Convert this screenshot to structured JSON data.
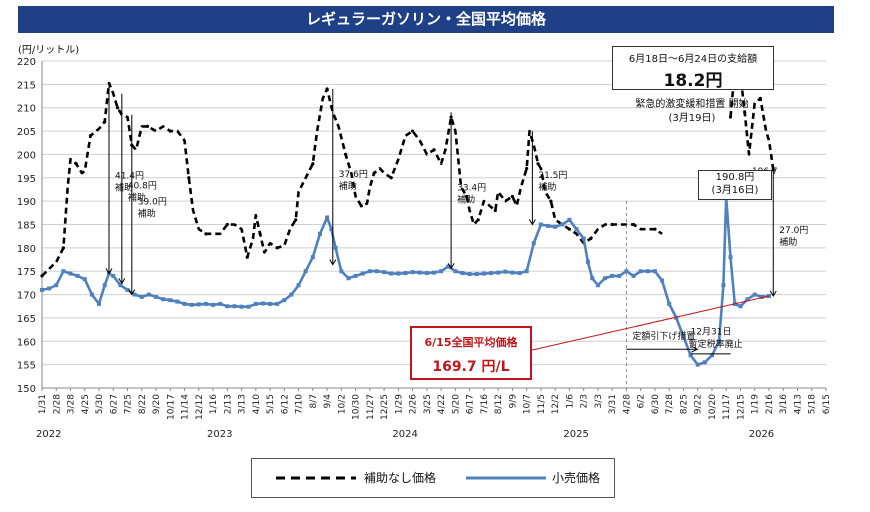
{
  "title": "レギュラーガソリン・全国平均価格",
  "chart_data": {
    "type": "line",
    "ylabel": "(円/リットル)",
    "ylim": [
      150,
      220
    ],
    "yticks": [
      150,
      155,
      160,
      165,
      170,
      175,
      180,
      185,
      190,
      195,
      200,
      205,
      210,
      215,
      220
    ],
    "x_labels": [
      "1/31",
      "2/28",
      "3/28",
      "4/25",
      "5/30",
      "6/27",
      "7/25",
      "8/22",
      "9/20",
      "10/17",
      "11/14",
      "12/12",
      "1/16",
      "2/13",
      "3/13",
      "4/10",
      "5/15",
      "6/12",
      "7/10",
      "8/7",
      "9/4",
      "10/2",
      "10/30",
      "11/27",
      "12/25",
      "1/29",
      "2/26",
      "3/25",
      "4/22",
      "5/20",
      "6/17",
      "7/16",
      "8/12",
      "9/9",
      "10/7",
      "11/5",
      "12/2",
      "1/6",
      "2/3",
      "3/3",
      "3/31",
      "4/28",
      "6/2",
      "6/30",
      "7/28",
      "8/25",
      "9/22",
      "10/20",
      "11/17",
      "12/15",
      "1/19",
      "2/16",
      "3/16",
      "4/13",
      "5/18",
      "6/15"
    ],
    "years": [
      {
        "label": "2022",
        "index": 0
      },
      {
        "label": "2023",
        "index": 12
      },
      {
        "label": "2024",
        "index": 25
      },
      {
        "label": "2025",
        "index": 37
      },
      {
        "label": "2026",
        "index": 50
      }
    ],
    "series": [
      {
        "name": "補助なし価格",
        "style": "dashed",
        "color": "#000000",
        "points": [
          [
            0,
            174
          ],
          [
            0.5,
            175.5
          ],
          [
            1,
            177
          ],
          [
            1.5,
            180
          ],
          [
            1.8,
            193
          ],
          [
            2,
            199
          ],
          [
            2.4,
            198
          ],
          [
            2.8,
            196
          ],
          [
            3,
            196.5
          ],
          [
            3.4,
            204
          ],
          [
            3.8,
            205
          ],
          [
            4,
            205.5
          ],
          [
            4.4,
            207
          ],
          [
            4.7,
            215.3
          ],
          [
            5,
            213
          ],
          [
            5.3,
            210
          ],
          [
            5.6,
            208.5
          ],
          [
            6,
            208
          ],
          [
            6.3,
            202
          ],
          [
            6.6,
            201
          ],
          [
            7,
            206
          ],
          [
            7.4,
            206
          ],
          [
            8,
            205
          ],
          [
            8.5,
            206
          ],
          [
            9,
            205
          ],
          [
            9.5,
            205
          ],
          [
            10,
            203
          ],
          [
            10.3,
            195
          ],
          [
            10.6,
            188
          ],
          [
            11,
            184
          ],
          [
            11.5,
            183
          ],
          [
            12,
            183
          ],
          [
            12.5,
            183
          ],
          [
            13,
            185
          ],
          [
            13.5,
            185
          ],
          [
            14,
            184
          ],
          [
            14.4,
            178
          ],
          [
            14.8,
            182
          ],
          [
            15,
            187
          ],
          [
            15.3,
            183
          ],
          [
            15.6,
            179
          ],
          [
            16,
            181
          ],
          [
            16.5,
            180
          ],
          [
            17,
            180.5
          ],
          [
            17.4,
            184
          ],
          [
            17.8,
            186
          ],
          [
            18,
            192
          ],
          [
            18.5,
            195
          ],
          [
            19,
            198
          ],
          [
            19.3,
            205
          ],
          [
            19.7,
            212
          ],
          [
            20,
            214
          ],
          [
            20.4,
            209
          ],
          [
            20.8,
            206
          ],
          [
            21.3,
            200
          ],
          [
            21.7,
            196
          ],
          [
            22,
            191
          ],
          [
            22.4,
            189
          ],
          [
            22.8,
            189.5
          ],
          [
            23,
            193
          ],
          [
            23.3,
            196
          ],
          [
            23.7,
            197
          ],
          [
            24,
            196
          ],
          [
            24.5,
            195
          ],
          [
            25,
            199
          ],
          [
            25.5,
            204
          ],
          [
            26,
            205
          ],
          [
            26.5,
            203
          ],
          [
            27,
            200
          ],
          [
            27.5,
            201
          ],
          [
            28,
            198
          ],
          [
            28.3,
            201
          ],
          [
            28.7,
            208
          ],
          [
            29,
            205
          ],
          [
            29.4,
            193
          ],
          [
            29.8,
            191
          ],
          [
            30,
            188
          ],
          [
            30.3,
            185
          ],
          [
            30.6,
            186
          ],
          [
            31,
            190
          ],
          [
            31.4,
            189
          ],
          [
            31.8,
            188
          ],
          [
            32,
            192
          ],
          [
            32.5,
            190
          ],
          [
            33,
            191
          ],
          [
            33.3,
            189
          ],
          [
            33.6,
            193
          ],
          [
            34,
            197
          ],
          [
            34.2,
            205
          ],
          [
            34.5,
            202
          ],
          [
            34.8,
            198
          ],
          [
            35,
            197
          ],
          [
            35.3,
            192
          ],
          [
            35.7,
            190
          ],
          [
            36,
            186
          ],
          [
            36.5,
            185
          ],
          [
            37,
            184
          ],
          [
            37.5,
            183
          ],
          [
            38,
            181
          ],
          [
            38.5,
            182
          ],
          [
            39,
            184
          ],
          [
            39.5,
            185
          ],
          [
            40,
            185
          ],
          [
            40.5,
            185
          ],
          [
            41,
            185
          ],
          [
            41.5,
            185
          ],
          [
            42,
            184
          ],
          [
            42.5,
            184
          ],
          [
            43,
            184
          ],
          [
            43.5,
            183
          ]
        ]
      },
      {
        "name": "小売価格",
        "style": "solid",
        "color": "#4f81bd",
        "points": [
          [
            0,
            171
          ],
          [
            0.5,
            171.3
          ],
          [
            1,
            172
          ],
          [
            1.5,
            175
          ],
          [
            2,
            174.5
          ],
          [
            2.5,
            174
          ],
          [
            3,
            173.3
          ],
          [
            3.5,
            170
          ],
          [
            4,
            168
          ],
          [
            4.4,
            172
          ],
          [
            4.7,
            174.5
          ],
          [
            5,
            174
          ],
          [
            5.5,
            172
          ],
          [
            6,
            171
          ],
          [
            6.5,
            170
          ],
          [
            7,
            169.5
          ],
          [
            7.5,
            170
          ],
          [
            8,
            169.5
          ],
          [
            8.5,
            169
          ],
          [
            9,
            168.8
          ],
          [
            9.5,
            168.5
          ],
          [
            10,
            168
          ],
          [
            10.5,
            167.8
          ],
          [
            11,
            167.9
          ],
          [
            11.5,
            168
          ],
          [
            12,
            167.8
          ],
          [
            12.5,
            168
          ],
          [
            13,
            167.5
          ],
          [
            13.5,
            167.5
          ],
          [
            14,
            167.4
          ],
          [
            14.5,
            167.4
          ],
          [
            15,
            168
          ],
          [
            15.5,
            168.1
          ],
          [
            16,
            168
          ],
          [
            16.5,
            168
          ],
          [
            17,
            168.8
          ],
          [
            17.5,
            170
          ],
          [
            18,
            172
          ],
          [
            18.5,
            175
          ],
          [
            19,
            178
          ],
          [
            19.5,
            183
          ],
          [
            20,
            186.5
          ],
          [
            20.3,
            184
          ],
          [
            20.6,
            180
          ],
          [
            21,
            175
          ],
          [
            21.5,
            173.5
          ],
          [
            22,
            174
          ],
          [
            22.5,
            174.5
          ],
          [
            23,
            175
          ],
          [
            23.5,
            175
          ],
          [
            24,
            174.8
          ],
          [
            24.5,
            174.5
          ],
          [
            25,
            174.5
          ],
          [
            25.5,
            174.6
          ],
          [
            26,
            174.8
          ],
          [
            26.5,
            174.7
          ],
          [
            27,
            174.6
          ],
          [
            27.5,
            174.7
          ],
          [
            28,
            175
          ],
          [
            28.5,
            176
          ],
          [
            29,
            175
          ],
          [
            29.5,
            174.6
          ],
          [
            30,
            174.4
          ],
          [
            30.5,
            174.4
          ],
          [
            31,
            174.5
          ],
          [
            31.5,
            174.6
          ],
          [
            32,
            174.7
          ],
          [
            32.5,
            174.9
          ],
          [
            33,
            174.7
          ],
          [
            33.5,
            174.6
          ],
          [
            34,
            175
          ],
          [
            34.5,
            181
          ],
          [
            35,
            185
          ],
          [
            35.5,
            184.7
          ],
          [
            36,
            184.5
          ],
          [
            36.5,
            185
          ],
          [
            37,
            186
          ],
          [
            37.5,
            184
          ],
          [
            38,
            182
          ],
          [
            38.3,
            177
          ],
          [
            38.6,
            173.5
          ],
          [
            39,
            172
          ],
          [
            39.5,
            173.5
          ],
          [
            40,
            174
          ],
          [
            40.5,
            174
          ],
          [
            41,
            175
          ],
          [
            41.5,
            174
          ],
          [
            42,
            175
          ],
          [
            42.5,
            175
          ],
          [
            43,
            175
          ],
          [
            43.5,
            173
          ],
          [
            44,
            168
          ],
          [
            44.5,
            165
          ],
          [
            45,
            161
          ],
          [
            45.5,
            157
          ],
          [
            46,
            155
          ],
          [
            46.5,
            155.5
          ],
          [
            47,
            157
          ],
          [
            47.5,
            160
          ],
          [
            47.8,
            172
          ],
          [
            48,
            190.8
          ],
          [
            48.3,
            178
          ],
          [
            48.6,
            168
          ],
          [
            49,
            167.5
          ],
          [
            49.5,
            169
          ],
          [
            50,
            170
          ],
          [
            50.5,
            169.5
          ],
          [
            51,
            169.7
          ]
        ]
      },
      {
        "name": "補助なし価格",
        "style": "dashed",
        "color": "#000000",
        "points": [
          [
            48.3,
            208
          ],
          [
            48.6,
            218
          ],
          [
            49,
            217
          ],
          [
            49.3,
            209
          ],
          [
            49.6,
            200
          ],
          [
            50,
            211
          ],
          [
            50.4,
            212
          ],
          [
            50.8,
            205
          ],
          [
            51,
            203
          ],
          [
            51.3,
            196.7
          ]
        ]
      }
    ],
    "annotations": [
      {
        "text": [
          "41.4円",
          "補助"
        ],
        "top": 215.3,
        "bottom": 174.5,
        "xi": 4.7
      },
      {
        "text": [
          "40.8円",
          "補助"
        ],
        "top": 213,
        "bottom": 172.4,
        "xi": 5.6
      },
      {
        "text": [
          "39.0円",
          "補助"
        ],
        "top": 208.5,
        "bottom": 170,
        "xi": 6.3
      },
      {
        "text": [
          "37.6円",
          "補助"
        ],
        "top": 214,
        "bottom": 176.4,
        "xi": 20.4
      },
      {
        "text": [
          "33.4円",
          "補助"
        ],
        "top": 209,
        "bottom": 175.6,
        "xi": 28.7
      },
      {
        "text": [
          "21.5円",
          "補助"
        ],
        "top": 205,
        "bottom": 185,
        "xi": 34.4
      },
      {
        "text": [
          "27.0円",
          "補助"
        ],
        "top": 196.7,
        "bottom": 169.7,
        "xi": 51.3
      }
    ],
    "phase_labels": [
      "定額引下げ措置",
      "暫定税率廃止"
    ],
    "retail_peak_label": [
      "190.8円",
      "(3月16日)"
    ],
    "unsubsidized_last": "196.7"
  },
  "payment_box": {
    "label": "6月18日～6月24日の支給額",
    "amount": "18.2円"
  },
  "policy_note": [
    "緊急的激変緩和措置 開始",
    "(3月19日)"
  ],
  "date_note": [
    "12月31日"
  ],
  "national_average": {
    "title": "6/15全国平均価格",
    "value": "169.7 円/L"
  },
  "legend": {
    "solid": "小売価格",
    "dashed": "補助なし価格"
  }
}
